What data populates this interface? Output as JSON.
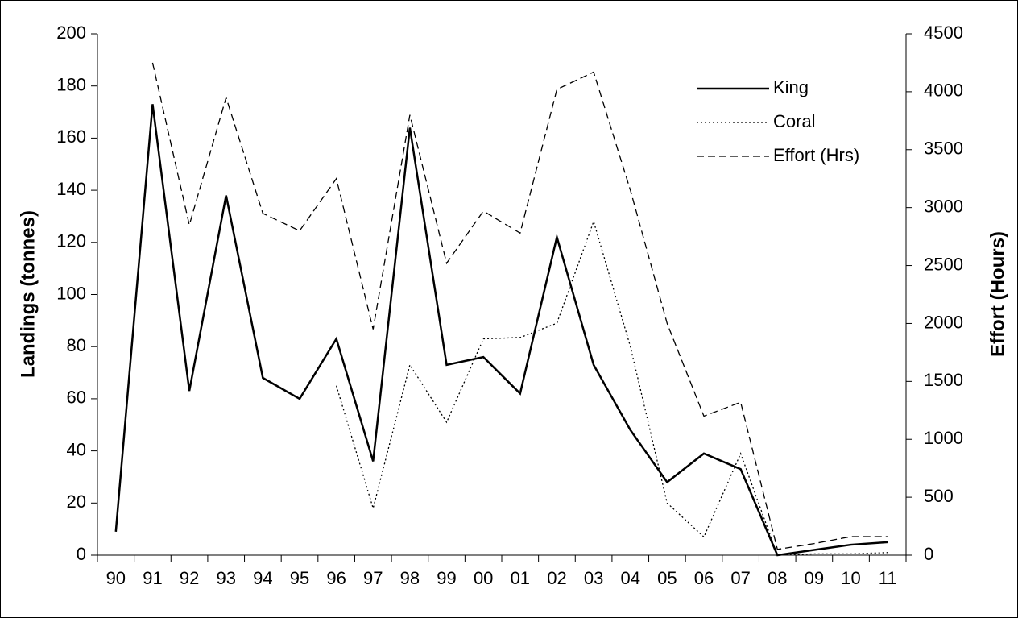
{
  "chart_data": {
    "type": "line",
    "categories": [
      "90",
      "91",
      "92",
      "93",
      "94",
      "95",
      "96",
      "97",
      "98",
      "99",
      "00",
      "01",
      "02",
      "03",
      "04",
      "05",
      "06",
      "07",
      "08",
      "09",
      "10",
      "11"
    ],
    "ylabel": "Landings (tonnes)",
    "y2label": "Effort (Hours)",
    "ylim": [
      0,
      200
    ],
    "yticks": [
      0,
      20,
      40,
      60,
      80,
      100,
      120,
      140,
      160,
      180,
      200
    ],
    "y2lim": [
      0,
      4500
    ],
    "y2ticks": [
      0,
      500,
      1000,
      1500,
      2000,
      2500,
      3000,
      3500,
      4000,
      4500
    ],
    "legend": "upper right",
    "series": [
      {
        "name": "King",
        "color": "#000000",
        "style": "solid",
        "values": [
          9,
          173,
          63,
          138,
          68,
          60,
          83,
          36,
          164,
          73,
          76,
          62,
          122,
          73,
          48,
          28,
          39,
          33,
          0,
          2,
          4,
          5
        ]
      },
      {
        "name": "Coral",
        "color": "#000000",
        "style": "dotted",
        "values": [
          null,
          null,
          null,
          null,
          null,
          null,
          65,
          18,
          73,
          51,
          83,
          83.5,
          89,
          128,
          80,
          20,
          7,
          39,
          0,
          0.5,
          0.5,
          1
        ]
      },
      {
        "name": "Effort (Hrs)",
        "color": "#000000",
        "style": "dashed",
        "axis": "y2",
        "values": [
          null,
          4250,
          2850,
          3950,
          2950,
          2800,
          3250,
          1950,
          3800,
          2520,
          2970,
          2780,
          4020,
          4170,
          3150,
          2000,
          1200,
          1320,
          50,
          100,
          160,
          160
        ]
      }
    ]
  }
}
